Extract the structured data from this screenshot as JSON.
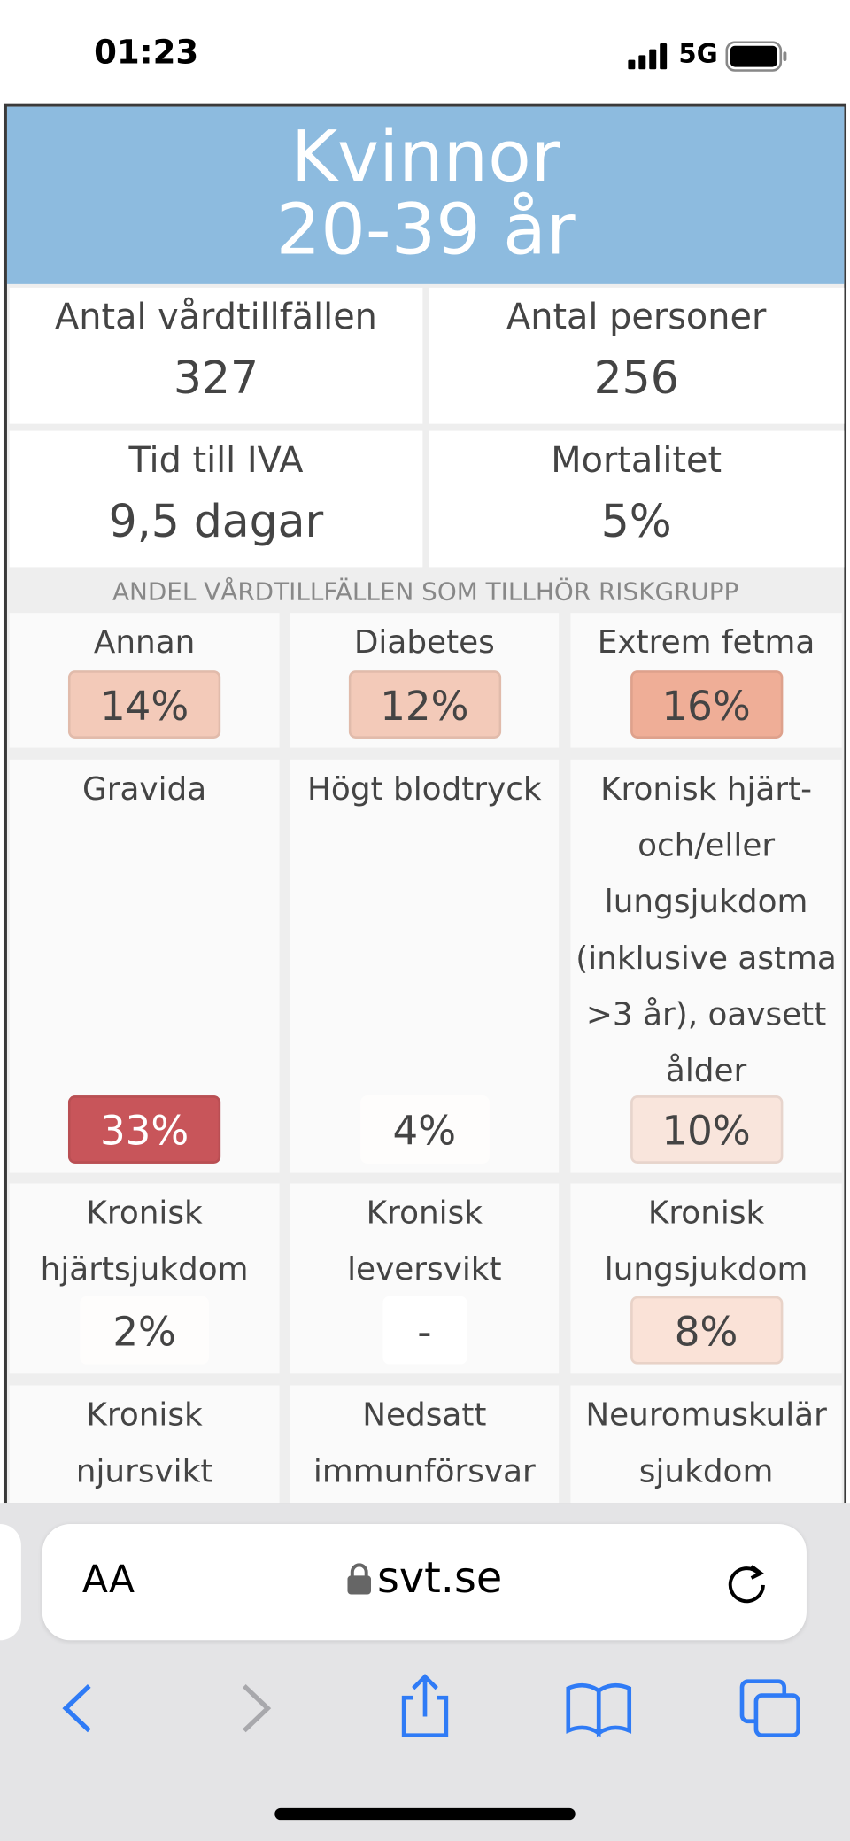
{
  "status_bar": {
    "time": "01:23",
    "network": "5G"
  },
  "header": {
    "title": "Kvinnor",
    "age": "20-39 år"
  },
  "stats": [
    {
      "label": "Antal vårdtillfällen",
      "value": "327"
    },
    {
      "label": "Antal personer",
      "value": "256"
    },
    {
      "label": "Tid till IVA",
      "value": "9,5 dagar"
    },
    {
      "label": "Mortalitet",
      "value": "5%"
    }
  ],
  "risk_groups": {
    "title": "ANDEL VÅRDTILLFÄLLEN SOM TILLHÖR RISKGRUPP",
    "cells": [
      {
        "label": "Annan",
        "value": "14%",
        "color": "#f3cab9"
      },
      {
        "label": "Diabetes",
        "value": "12%",
        "color": "#f3cab9"
      },
      {
        "label": "Extrem fetma",
        "value": "16%",
        "color": "#efae97"
      },
      {
        "label": "Gravida",
        "value": "33%",
        "color": "#c8555a"
      },
      {
        "label": "Högt blodtryck",
        "value": "4%",
        "color": "#fefdfc"
      },
      {
        "label": "Kronisk hjärt- och/eller lungsjukdom (inklusive astma >3 år), oavsett ålder",
        "value": "10%",
        "color": "#f9e5dc"
      },
      {
        "label": "Kronisk hjärtsjukdom",
        "value": "2%",
        "color": "#fefdfc"
      },
      {
        "label": "Kronisk leversvikt",
        "value": "-",
        "color": "#ffffff"
      },
      {
        "label": "Kronisk lungsjukdom",
        "value": "8%",
        "color": "#fae2d7"
      },
      {
        "label": "Kronisk njursvikt"
      },
      {
        "label": "Nedsatt immunförsvar"
      },
      {
        "label": "Neuromuskulär sjukdom"
      }
    ]
  },
  "browser": {
    "text_size": "AA",
    "url": "svt.se"
  }
}
